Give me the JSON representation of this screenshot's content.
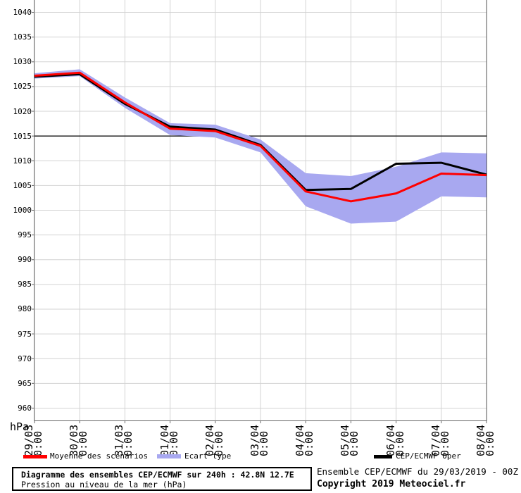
{
  "chart_data": {
    "type": "line",
    "title": "Diagramme des ensembles CEP/ECMWF sur 240h : 42.8N 12.7E",
    "subtitle": "Pression au niveau de la mer (hPa)",
    "ylabel": "hPa",
    "ylim": [
      957.5,
      1042.5
    ],
    "yticks": [
      1040,
      1035,
      1030,
      1025,
      1020,
      1015,
      1010,
      1005,
      1000,
      995,
      990,
      985,
      980,
      975,
      970,
      965,
      960
    ],
    "reference_line": 1015,
    "grid": true,
    "x_labels": [
      {
        "date": "29/03",
        "time": "0:00"
      },
      {
        "date": "30/03",
        "time": "0:00"
      },
      {
        "date": "31/03",
        "time": "0:00"
      },
      {
        "date": "01/04",
        "time": "0:00"
      },
      {
        "date": "02/04",
        "time": "0:00"
      },
      {
        "date": "03/04",
        "time": "0:00"
      },
      {
        "date": "04/04",
        "time": "0:00"
      },
      {
        "date": "05/04",
        "time": "0:00"
      },
      {
        "date": "06/04",
        "time": "0:00"
      },
      {
        "date": "07/04",
        "time": "0:00"
      },
      {
        "date": "08/04",
        "time": "0:00"
      }
    ],
    "series": [
      {
        "name": "Moyenne des scénarios",
        "type": "line",
        "color": "#ff0000",
        "values": [
          1027.2,
          1027.8,
          1021.8,
          1016.5,
          1016.0,
          1013.0,
          1003.8,
          1001.8,
          1003.4,
          1007.4,
          1007.1
        ]
      },
      {
        "name": "CEP/ECMWF Oper",
        "type": "line",
        "color": "#000000",
        "values": [
          1027.0,
          1027.5,
          1021.5,
          1016.9,
          1016.3,
          1013.2,
          1004.1,
          1004.3,
          1009.4,
          1009.6,
          1007.2
        ]
      },
      {
        "name": "Ecart type",
        "type": "band",
        "color": "#a8a8f0",
        "top": [
          1027.7,
          1028.5,
          1022.8,
          1017.6,
          1017.3,
          1014.3,
          1007.5,
          1006.9,
          1008.8,
          1011.7,
          1011.5
        ],
        "bottom": [
          1026.6,
          1027.1,
          1020.7,
          1015.2,
          1014.7,
          1011.7,
          1000.8,
          997.3,
          997.7,
          1002.8,
          1002.6
        ]
      }
    ],
    "colors": {
      "mean": "#ff0000",
      "oper": "#000000",
      "band": "#a8a8f0",
      "grid": "#d3d3d3",
      "frame": "#666666",
      "reference": "#000000"
    },
    "legend_position": "bottom"
  },
  "legend": {
    "mean": "Moyenne des scénarios",
    "std": "Ecart type",
    "oper": "CEP/ECMWF Oper"
  },
  "footer": {
    "title": "Diagramme des ensembles CEP/ECMWF sur 240h : 42.8N 12.7E",
    "subtitle": "Pression au niveau de la mer (hPa)",
    "run_info": "Ensemble CEP/ECMWF du 29/03/2019 - 00Z",
    "copyright": "Copyright 2019 Meteociel.fr"
  }
}
